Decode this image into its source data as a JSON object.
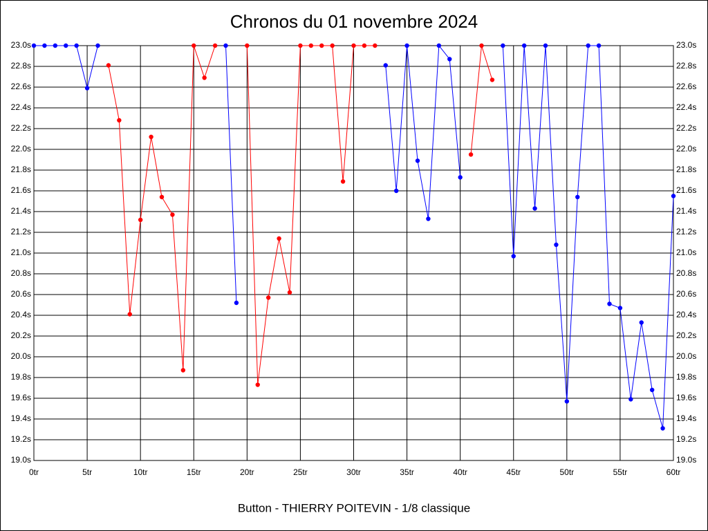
{
  "chart_data": {
    "type": "line",
    "title": "Chronos du 01 novembre 2024",
    "x_label": "Button - THIERRY POITEVIN - 1/8 classique",
    "x": [
      0,
      1,
      2,
      3,
      4,
      5,
      6,
      7,
      8,
      9,
      10,
      11,
      12,
      13,
      14,
      15,
      16,
      17,
      18,
      19,
      20,
      21,
      22,
      23,
      24,
      25,
      26,
      27,
      28,
      29,
      30,
      31,
      32,
      33,
      34,
      35,
      36,
      37,
      38,
      39,
      40,
      41,
      42,
      43,
      44,
      45,
      46,
      47,
      48,
      49,
      50,
      51,
      52,
      53,
      54,
      55,
      56,
      57,
      58,
      59,
      60
    ],
    "series": [
      {
        "color": "#0000ff",
        "values": [
          23,
          23,
          23,
          23,
          23,
          22.59,
          23,
          null,
          null,
          null,
          null,
          null,
          null,
          null,
          null,
          null,
          null,
          null,
          23,
          20.52,
          null,
          null,
          null,
          null,
          null,
          null,
          null,
          null,
          null,
          null,
          null,
          null,
          null,
          22.81,
          21.6,
          23,
          21.89,
          21.33,
          23,
          22.87,
          21.73,
          null,
          null,
          null,
          23,
          20.97,
          23,
          21.43,
          23,
          21.08,
          19.57,
          21.54,
          23,
          23,
          20.51,
          20.47,
          19.59,
          20.33,
          19.68,
          19.31,
          21.55
        ]
      },
      {
        "color": "#ff0000",
        "values": [
          null,
          null,
          null,
          null,
          null,
          null,
          null,
          22.81,
          22.28,
          20.41,
          21.32,
          22.12,
          21.54,
          21.37,
          19.87,
          23,
          22.69,
          23,
          null,
          null,
          23,
          19.73,
          20.57,
          21.14,
          20.62,
          23,
          23,
          23,
          23,
          21.69,
          23,
          23,
          23,
          null,
          null,
          null,
          null,
          null,
          null,
          null,
          null,
          21.95,
          23,
          22.67,
          null,
          null,
          null,
          null,
          null,
          null,
          null,
          null,
          null,
          null,
          null,
          null,
          null,
          null,
          null,
          null,
          null
        ]
      }
    ],
    "xlim": [
      0,
      60
    ],
    "xticks": [
      {
        "value": 0,
        "label": "0tr"
      },
      {
        "value": 5,
        "label": "5tr"
      },
      {
        "value": 10,
        "label": "10tr"
      },
      {
        "value": 15,
        "label": "15tr"
      },
      {
        "value": 20,
        "label": "20tr"
      },
      {
        "value": 25,
        "label": "25tr"
      },
      {
        "value": 30,
        "label": "30tr"
      },
      {
        "value": 35,
        "label": "35tr"
      },
      {
        "value": 40,
        "label": "40tr"
      },
      {
        "value": 45,
        "label": "45tr"
      },
      {
        "value": 50,
        "label": "50tr"
      },
      {
        "value": 55,
        "label": "55tr"
      },
      {
        "value": 60,
        "label": "60tr"
      }
    ],
    "ylim": [
      19,
      23
    ],
    "yticks": [
      {
        "value": 19,
        "label": "19.0s"
      },
      {
        "value": 19.2,
        "label": "19.2s"
      },
      {
        "value": 19.4,
        "label": "19.4s"
      },
      {
        "value": 19.6,
        "label": "19.6s"
      },
      {
        "value": 19.8,
        "label": "19.8s"
      },
      {
        "value": 20,
        "label": "20.0s"
      },
      {
        "value": 20.2,
        "label": "20.2s"
      },
      {
        "value": 20.4,
        "label": "20.4s"
      },
      {
        "value": 20.6,
        "label": "20.6s"
      },
      {
        "value": 20.8,
        "label": "20.8s"
      },
      {
        "value": 21,
        "label": "21.0s"
      },
      {
        "value": 21.2,
        "label": "21.2s"
      },
      {
        "value": 21.4,
        "label": "21.4s"
      },
      {
        "value": 21.6,
        "label": "21.6s"
      },
      {
        "value": 21.8,
        "label": "21.8s"
      },
      {
        "value": 22,
        "label": "22.0s"
      },
      {
        "value": 22.2,
        "label": "22.2s"
      },
      {
        "value": 22.4,
        "label": "22.4s"
      },
      {
        "value": 22.6,
        "label": "22.6s"
      },
      {
        "value": 22.8,
        "label": "22.8s"
      },
      {
        "value": 23,
        "label": "23.0s"
      }
    ],
    "grid": true
  }
}
